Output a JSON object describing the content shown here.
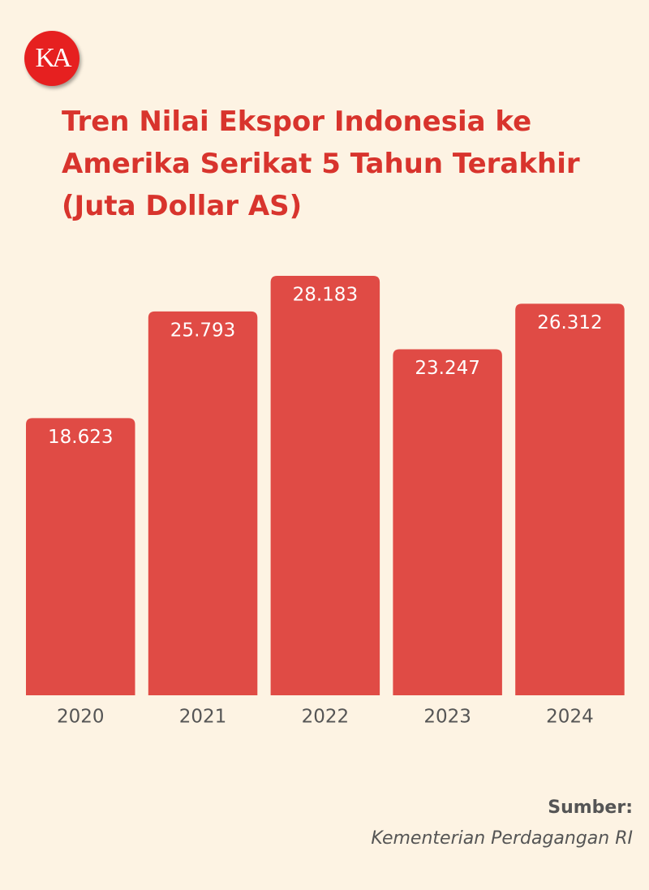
{
  "logo": "KA",
  "chart_data": {
    "type": "bar",
    "title": "Tren Nilai Ekspor Indonesia ke Amerika Serikat 5 Tahun Terakhir (Juta Dollar AS)",
    "categories": [
      "2020",
      "2021",
      "2022",
      "2023",
      "2024"
    ],
    "values": [
      18623,
      25793,
      28183,
      23247,
      26312
    ],
    "value_labels": [
      "18.623",
      "25.793",
      "28.183",
      "23.247",
      "26.312"
    ],
    "color": "#e04b45"
  },
  "source": {
    "label": "Sumber:",
    "text": "Kementerian Perdagangan RI"
  }
}
